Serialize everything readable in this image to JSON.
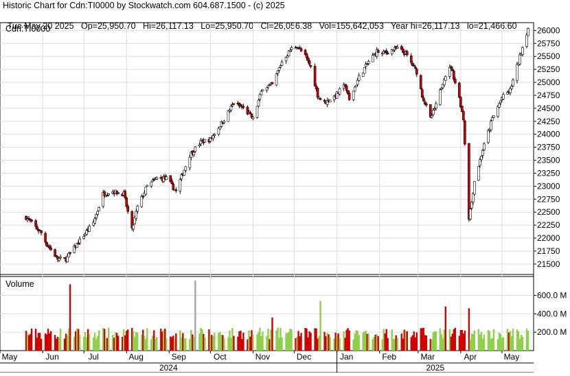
{
  "header": {
    "line1": "Historic Chart for Cdn:TI0000 by Stockwatch.com 604.687.1500 - (c) 2025",
    "line2_parts": [
      "Tue May 20 2025",
      "Op=25,950.70",
      "Hi=26,117.13",
      "Lo=25,950.70",
      "Cl=26,056.38",
      "Vol=155,642,053",
      "Year hi=26,117.13",
      "lo=21,466.60"
    ]
  },
  "chart_data": [
    {
      "type": "candlestick",
      "symbol_label": "Cdn:TI0000",
      "y_ticks": [
        "26000",
        "25750",
        "25500",
        "25250",
        "25000",
        "24750",
        "24500",
        "24250",
        "24000",
        "23750",
        "23500",
        "23250",
        "23000",
        "22750",
        "22500",
        "22250",
        "22000",
        "21750",
        "21500"
      ],
      "y_range": [
        21300,
        26150
      ],
      "colors": {
        "up": "#ffffff",
        "down": "#d40000",
        "wick": "#000000"
      },
      "anchors": [
        [
          "2024-05-20",
          22400
        ],
        [
          "2024-05-31",
          22100
        ],
        [
          "2024-06-04",
          21880
        ],
        [
          "2024-06-12",
          21600
        ],
        [
          "2024-06-18",
          21600
        ],
        [
          "2024-06-28",
          21950
        ],
        [
          "2024-07-08",
          22300
        ],
        [
          "2024-07-15",
          22850
        ],
        [
          "2024-07-22",
          22900
        ],
        [
          "2024-07-30",
          22850
        ],
        [
          "2024-08-05",
          22150
        ],
        [
          "2024-08-09",
          22600
        ],
        [
          "2024-08-16",
          23000
        ],
        [
          "2024-08-23",
          23150
        ],
        [
          "2024-08-30",
          23150
        ],
        [
          "2024-09-06",
          22900
        ],
        [
          "2024-09-16",
          23600
        ],
        [
          "2024-09-24",
          23850
        ],
        [
          "2024-10-01",
          23900
        ],
        [
          "2024-10-10",
          24250
        ],
        [
          "2024-10-18",
          24600
        ],
        [
          "2024-10-25",
          24500
        ],
        [
          "2024-11-01",
          24300
        ],
        [
          "2024-11-08",
          24900
        ],
        [
          "2024-11-15",
          24950
        ],
        [
          "2024-11-22",
          25400
        ],
        [
          "2024-11-29",
          25650
        ],
        [
          "2024-12-03",
          25700
        ],
        [
          "2024-12-09",
          25500
        ],
        [
          "2024-12-13",
          25300
        ],
        [
          "2024-12-18",
          24750
        ],
        [
          "2024-12-23",
          24600
        ],
        [
          "2024-12-31",
          24750
        ],
        [
          "2025-01-07",
          24950
        ],
        [
          "2025-01-10",
          24650
        ],
        [
          "2025-01-17",
          25100
        ],
        [
          "2025-01-24",
          25400
        ],
        [
          "2025-01-30",
          25600
        ],
        [
          "2025-02-03",
          25550
        ],
        [
          "2025-02-07",
          25600
        ],
        [
          "2025-02-14",
          25650
        ],
        [
          "2025-02-20",
          25550
        ],
        [
          "2025-02-28",
          25200
        ],
        [
          "2025-03-04",
          24750
        ],
        [
          "2025-03-10",
          24300
        ],
        [
          "2025-03-14",
          24550
        ],
        [
          "2025-03-20",
          25100
        ],
        [
          "2025-03-25",
          25300
        ],
        [
          "2025-03-31",
          24700
        ],
        [
          "2025-04-03",
          24300
        ],
        [
          "2025-04-07",
          22400
        ],
        [
          "2025-04-09",
          22700
        ],
        [
          "2025-04-11",
          23100
        ],
        [
          "2025-04-17",
          23700
        ],
        [
          "2025-04-24",
          24300
        ],
        [
          "2025-05-01",
          24700
        ],
        [
          "2025-05-07",
          24850
        ],
        [
          "2025-05-13",
          25400
        ],
        [
          "2025-05-20",
          26050
        ]
      ]
    },
    {
      "type": "bar",
      "title": "Volume",
      "y_ticks": [
        "600.0 M",
        "400.0 M",
        "200.0 M"
      ],
      "y_range": [
        0,
        760
      ],
      "colors": {
        "up": "#8ed04a",
        "down": "#d40000",
        "other": "#a6a6a6"
      },
      "spikes": [
        [
          "2024-06-21",
          720,
          "down"
        ],
        [
          "2024-09-20",
          760,
          "other"
        ],
        [
          "2024-11-15",
          360,
          "down"
        ],
        [
          "2024-12-20",
          540,
          "up"
        ],
        [
          "2025-03-21",
          480,
          "down"
        ],
        [
          "2025-04-07",
          460,
          "down"
        ]
      ]
    }
  ],
  "x_axis": {
    "months": [
      [
        "2024-05-01",
        "May"
      ],
      [
        "2024-06-01",
        "Jun"
      ],
      [
        "2024-07-01",
        "Jul"
      ],
      [
        "2024-08-01",
        "Aug"
      ],
      [
        "2024-09-01",
        "Sep"
      ],
      [
        "2024-10-01",
        "Oct"
      ],
      [
        "2024-11-01",
        "Nov"
      ],
      [
        "2024-12-01",
        "Dec"
      ],
      [
        "2025-01-01",
        "Jan"
      ],
      [
        "2025-02-01",
        "Feb"
      ],
      [
        "2025-03-01",
        "Mar"
      ],
      [
        "2025-04-01",
        "Apr"
      ],
      [
        "2025-05-01",
        "May"
      ]
    ],
    "years": [
      "2024",
      "2025"
    ]
  }
}
